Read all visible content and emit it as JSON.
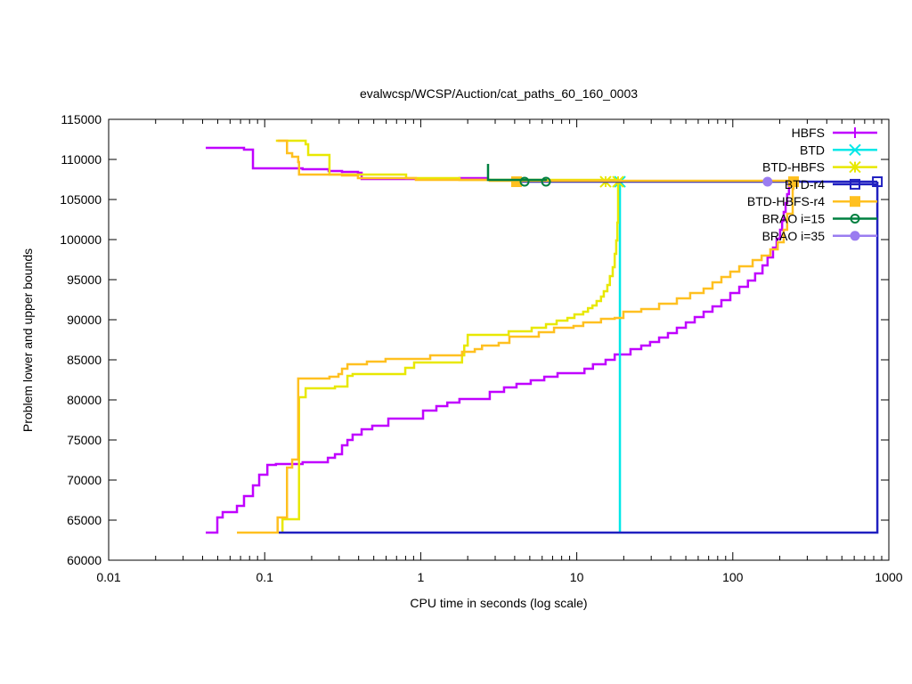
{
  "chart_data": {
    "type": "line",
    "title": "evalwcsp/WCSP/Auction/cat_paths_60_160_0003",
    "xlabel": "CPU time in seconds (log scale)",
    "ylabel": "Problem lower and upper bounds",
    "xscale": "log",
    "xlim": [
      0.01,
      1000
    ],
    "ylim": [
      60000,
      115000
    ],
    "xticks": [
      0.01,
      0.1,
      1,
      10,
      100,
      1000
    ],
    "xtick_labels": [
      "0.01",
      "0.1",
      "1",
      "10",
      "100",
      "1000"
    ],
    "yticks": [
      60000,
      65000,
      70000,
      75000,
      80000,
      85000,
      90000,
      95000,
      100000,
      105000,
      110000,
      115000
    ],
    "ytick_labels": [
      "60000",
      "65000",
      "70000",
      "75000",
      "80000",
      "85000",
      "90000",
      "95000",
      "100000",
      "105000",
      "110000",
      "115000"
    ],
    "legend_position": "top-right",
    "line_style": "steps",
    "series": [
      {
        "name": "HBFS",
        "color": "#c000ff",
        "marker": "plus",
        "lines": [
          [
            [
              0.0419,
              63450
            ],
            [
              0.0497,
              65330
            ],
            [
              0.0538,
              66000
            ],
            [
              0.0664,
              66780
            ],
            [
              0.0737,
              68000
            ],
            [
              0.0841,
              69330
            ],
            [
              0.0922,
              70670
            ],
            [
              0.104,
              71890
            ],
            [
              0.118,
              72000
            ],
            [
              0.175,
              72220
            ],
            [
              0.254,
              72780
            ],
            [
              0.282,
              73220
            ],
            [
              0.313,
              74330
            ],
            [
              0.339,
              75000
            ],
            [
              0.366,
              75670
            ],
            [
              0.418,
              76330
            ],
            [
              0.489,
              76780
            ],
            [
              0.62,
              77670
            ],
            [
              1.035,
              78670
            ],
            [
              1.26,
              79220
            ],
            [
              1.48,
              79670
            ],
            [
              1.77,
              80110
            ],
            [
              2.77,
              81000
            ],
            [
              3.42,
              81560
            ],
            [
              4.11,
              82000
            ],
            [
              5.07,
              82440
            ],
            [
              6.19,
              82890
            ],
            [
              7.53,
              83330
            ],
            [
              11.2,
              83890
            ],
            [
              12.7,
              84440
            ],
            [
              15.3,
              85000
            ],
            [
              17.5,
              85670
            ],
            [
              22.1,
              86330
            ],
            [
              25.9,
              86780
            ],
            [
              29.5,
              87220
            ],
            [
              33.7,
              87780
            ],
            [
              38.4,
              88330
            ],
            [
              43.8,
              89000
            ],
            [
              50.0,
              89670
            ],
            [
              57.0,
              90330
            ],
            [
              65.0,
              91000
            ],
            [
              74.1,
              91670
            ],
            [
              84.5,
              92440
            ],
            [
              96.4,
              93330
            ],
            [
              110,
              94110
            ],
            [
              125,
              94890
            ],
            [
              139,
              95780
            ],
            [
              155,
              96780
            ],
            [
              167,
              97780
            ],
            [
              181,
              99000
            ],
            [
              191,
              100110
            ],
            [
              201,
              101220
            ],
            [
              207,
              102330
            ],
            [
              212,
              103440
            ],
            [
              218,
              104560
            ],
            [
              223,
              105670
            ],
            [
              229,
              107110
            ]
          ],
          [
            [
              0.0419,
              111440
            ],
            [
              0.0737,
              111220
            ],
            [
              0.0841,
              108890
            ],
            [
              0.175,
              108780
            ],
            [
              0.257,
              108560
            ],
            [
              0.313,
              108440
            ],
            [
              0.396,
              108330
            ],
            [
              0.418,
              107560
            ],
            [
              1.77,
              107670
            ],
            [
              2.7,
              107670
            ]
          ]
        ],
        "markers": []
      },
      {
        "name": "BTD",
        "color": "#00e8e8",
        "marker": "x",
        "lines": [
          [
            [
              18.9,
              63450
            ],
            [
              18.9,
              107220
            ]
          ]
        ],
        "markers": [
          [
            18.9,
            107220
          ]
        ]
      },
      {
        "name": "BTD-HBFS",
        "color": "#e8e800",
        "marker": "star",
        "lines": [
          [
            [
              0.13,
              63450
            ],
            [
              0.13,
              65110
            ],
            [
              0.166,
              80330
            ],
            [
              0.183,
              81440
            ],
            [
              0.282,
              81670
            ],
            [
              0.339,
              83000
            ],
            [
              0.366,
              83220
            ],
            [
              0.796,
              84000
            ],
            [
              0.907,
              84670
            ],
            [
              1.84,
              85560
            ],
            [
              1.9,
              86780
            ],
            [
              2.0,
              88110
            ],
            [
              3.66,
              88560
            ],
            [
              5.14,
              89000
            ],
            [
              6.35,
              89440
            ],
            [
              7.43,
              89890
            ],
            [
              8.71,
              90220
            ],
            [
              9.66,
              90670
            ],
            [
              11.0,
              91000
            ],
            [
              11.8,
              91440
            ],
            [
              12.6,
              91780
            ],
            [
              13.4,
              92330
            ],
            [
              14.3,
              92890
            ],
            [
              14.9,
              93560
            ],
            [
              15.7,
              94330
            ],
            [
              16.3,
              95440
            ],
            [
              17.0,
              96560
            ],
            [
              17.5,
              98220
            ],
            [
              17.9,
              99890
            ],
            [
              18.2,
              102110
            ],
            [
              18.4,
              104330
            ],
            [
              18.4,
              107110
            ]
          ],
          [
            [
              0.118,
              112330
            ],
            [
              0.166,
              112330
            ],
            [
              0.183,
              111890
            ],
            [
              0.19,
              110560
            ],
            [
              0.26,
              110560
            ],
            [
              0.26,
              108110
            ],
            [
              0.806,
              108110
            ],
            [
              0.806,
              107670
            ],
            [
              1.77,
              107670
            ],
            [
              1.77,
              107440
            ],
            [
              18.4,
              107220
            ]
          ]
        ],
        "markers": [
          [
            15.3,
            107220
          ],
          [
            18.4,
            107220
          ]
        ]
      },
      {
        "name": "BTD-r4",
        "color": "#2020c0",
        "marker": "square-open",
        "lines": [
          [
            [
              0.123,
              63450
            ],
            [
              844,
              63450
            ],
            [
              844,
              107220
            ]
          ],
          [
            [
              4.11,
              107220
            ],
            [
              844,
              107220
            ]
          ]
        ],
        "markers": [
          [
            844,
            107220
          ]
        ]
      },
      {
        "name": "BTD-HBFS-r4",
        "color": "#ffc020",
        "marker": "square-filled",
        "lines": [
          [
            [
              0.0664,
              63450
            ],
            [
              0.121,
              63450
            ],
            [
              0.121,
              65330
            ],
            [
              0.139,
              71560
            ],
            [
              0.15,
              72560
            ],
            [
              0.164,
              82670
            ],
            [
              0.26,
              82890
            ],
            [
              0.297,
              83220
            ],
            [
              0.313,
              83890
            ],
            [
              0.339,
              84440
            ],
            [
              0.452,
              84780
            ],
            [
              0.595,
              85110
            ],
            [
              1.15,
              85560
            ],
            [
              1.84,
              86000
            ],
            [
              2.22,
              86330
            ],
            [
              2.47,
              86780
            ],
            [
              3.16,
              87110
            ],
            [
              3.7,
              87890
            ],
            [
              5.71,
              88440
            ],
            [
              7.15,
              89000
            ],
            [
              9.53,
              89220
            ],
            [
              11.0,
              89670
            ],
            [
              14.3,
              90110
            ],
            [
              17.5,
              90220
            ],
            [
              19.9,
              91000
            ],
            [
              25.9,
              91330
            ],
            [
              33.7,
              92000
            ],
            [
              43.8,
              92670
            ],
            [
              53.3,
              93330
            ],
            [
              65.0,
              93890
            ],
            [
              74.1,
              94670
            ],
            [
              84.5,
              95330
            ],
            [
              96.4,
              96000
            ],
            [
              110,
              96670
            ],
            [
              134,
              97440
            ],
            [
              153,
              98000
            ],
            [
              174,
              98780
            ],
            [
              194,
              99670
            ],
            [
              212,
              101220
            ],
            [
              223,
              103220
            ],
            [
              242,
              106330
            ],
            [
              245,
              107110
            ]
          ],
          [
            [
              0.121,
              112330
            ],
            [
              0.139,
              112330
            ],
            [
              0.139,
              110780
            ],
            [
              0.15,
              110330
            ],
            [
              0.164,
              109670
            ],
            [
              0.166,
              108110
            ],
            [
              0.313,
              108000
            ],
            [
              0.396,
              107670
            ],
            [
              0.931,
              107440
            ],
            [
              2.77,
              107330
            ],
            [
              245,
              107220
            ]
          ]
        ],
        "markers": [
          [
            4.11,
            107220
          ],
          [
            245,
            107220
          ]
        ]
      },
      {
        "name": "BRAO i=15",
        "color": "#008040",
        "marker": "circle-open",
        "lines": [
          [
            [
              2.7,
              109440
            ],
            [
              2.7,
              107440
            ],
            [
              6.35,
              107330
            ]
          ]
        ],
        "markers": [
          [
            4.63,
            107220
          ],
          [
            6.35,
            107220
          ]
        ]
      },
      {
        "name": "BRAO i=35",
        "color": "#9a7cf0",
        "marker": "circle-filled",
        "lines": [],
        "markers": [
          [
            167,
            107220
          ]
        ]
      }
    ]
  }
}
